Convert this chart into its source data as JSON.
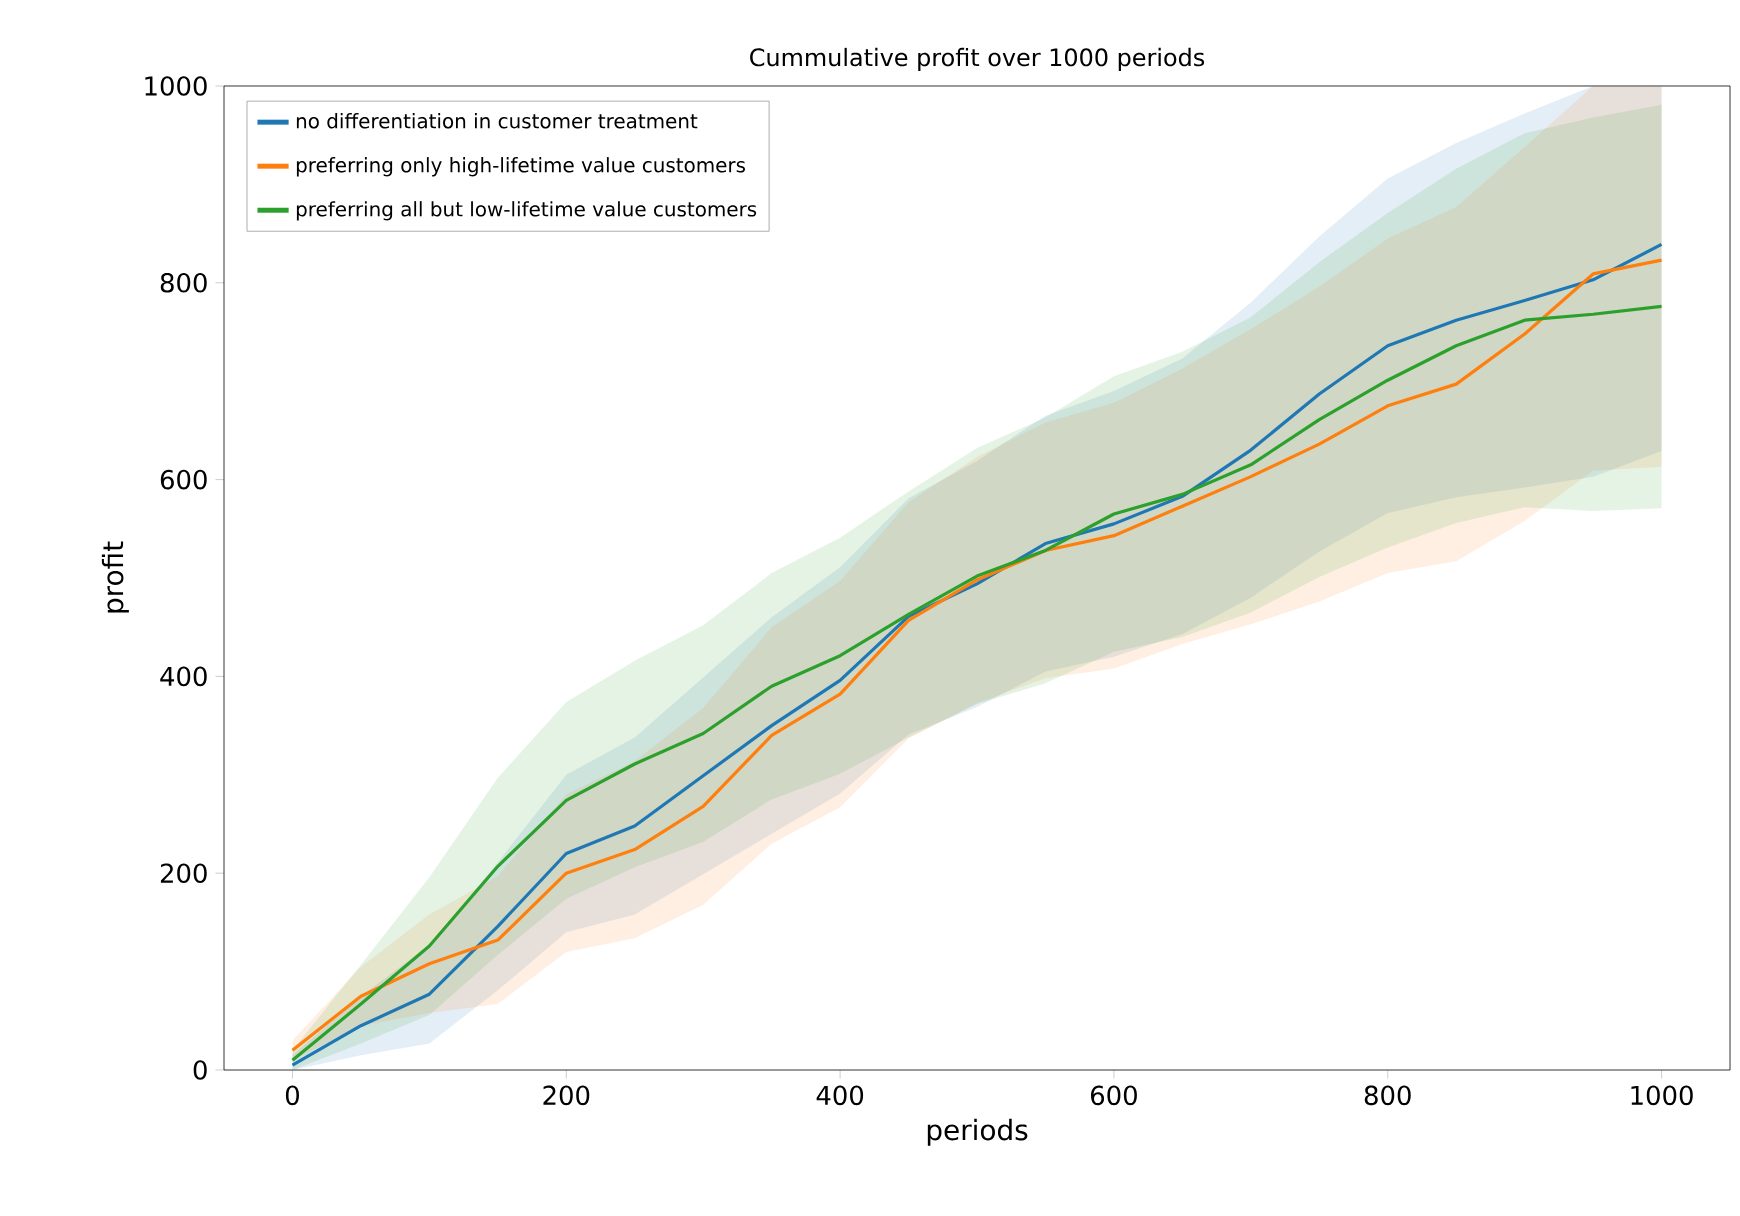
{
  "chart_data": {
    "type": "line",
    "title": "Cummulative profit over 1000 periods",
    "xlabel": "periods",
    "ylabel": "profit",
    "x": [
      0,
      50,
      100,
      150,
      200,
      250,
      300,
      350,
      400,
      450,
      500,
      550,
      600,
      650,
      700,
      750,
      800,
      850,
      900,
      950,
      1000
    ],
    "series": [
      {
        "name": "no differentiation in customer treatment",
        "color": "#1f77b4",
        "values": [
          5,
          45,
          77,
          146,
          220,
          248,
          299,
          350,
          396,
          461,
          494,
          535,
          555,
          583,
          630,
          687,
          736,
          762,
          782,
          803,
          839
        ],
        "upper": [
          15,
          75,
          127,
          211,
          300,
          338,
          399,
          460,
          511,
          581,
          619,
          665,
          690,
          723,
          780,
          847,
          906,
          942,
          972,
          1000,
          1000
        ],
        "lower": [
          0,
          15,
          27,
          81,
          140,
          158,
          199,
          240,
          281,
          341,
          369,
          405,
          420,
          443,
          480,
          527,
          566,
          582,
          592,
          603,
          629
        ]
      },
      {
        "name": "preferring only high-lifetime value customers",
        "color": "#ff7f0e",
        "values": [
          20,
          75,
          108,
          132,
          200,
          224,
          268,
          340,
          382,
          457,
          498,
          528,
          543,
          573,
          603,
          636,
          675,
          697,
          748,
          809,
          823
        ],
        "upper": [
          30,
          105,
          158,
          197,
          280,
          314,
          368,
          450,
          497,
          577,
          623,
          658,
          678,
          713,
          753,
          796,
          845,
          877,
          938,
          1000,
          1000
        ],
        "lower": [
          10,
          45,
          58,
          67,
          120,
          134,
          168,
          230,
          267,
          337,
          373,
          398,
          408,
          433,
          453,
          476,
          505,
          517,
          558,
          609,
          613
        ]
      },
      {
        "name": "preferring all but low-lifetime value customers",
        "color": "#2ca02c",
        "values": [
          10,
          67,
          126,
          207,
          274,
          311,
          342,
          390,
          421,
          463,
          502,
          528,
          565,
          585,
          615,
          661,
          701,
          736,
          762,
          768,
          776
        ],
        "upper": [
          20,
          107,
          196,
          297,
          374,
          416,
          452,
          505,
          541,
          588,
          632,
          663,
          705,
          730,
          765,
          821,
          871,
          916,
          952,
          968,
          981
        ],
        "lower": [
          0,
          27,
          56,
          117,
          174,
          206,
          232,
          275,
          301,
          338,
          372,
          393,
          425,
          440,
          465,
          501,
          531,
          556,
          572,
          568,
          571
        ]
      }
    ],
    "xlim": [
      -50,
      1050
    ],
    "ylim": [
      0,
      1000
    ],
    "xticks": [
      0,
      200,
      400,
      600,
      800,
      1000
    ],
    "yticks": [
      0,
      200,
      400,
      600,
      800,
      1000
    ],
    "grid": false,
    "legend": "top left",
    "marker": "none",
    "line_style": "solid"
  }
}
